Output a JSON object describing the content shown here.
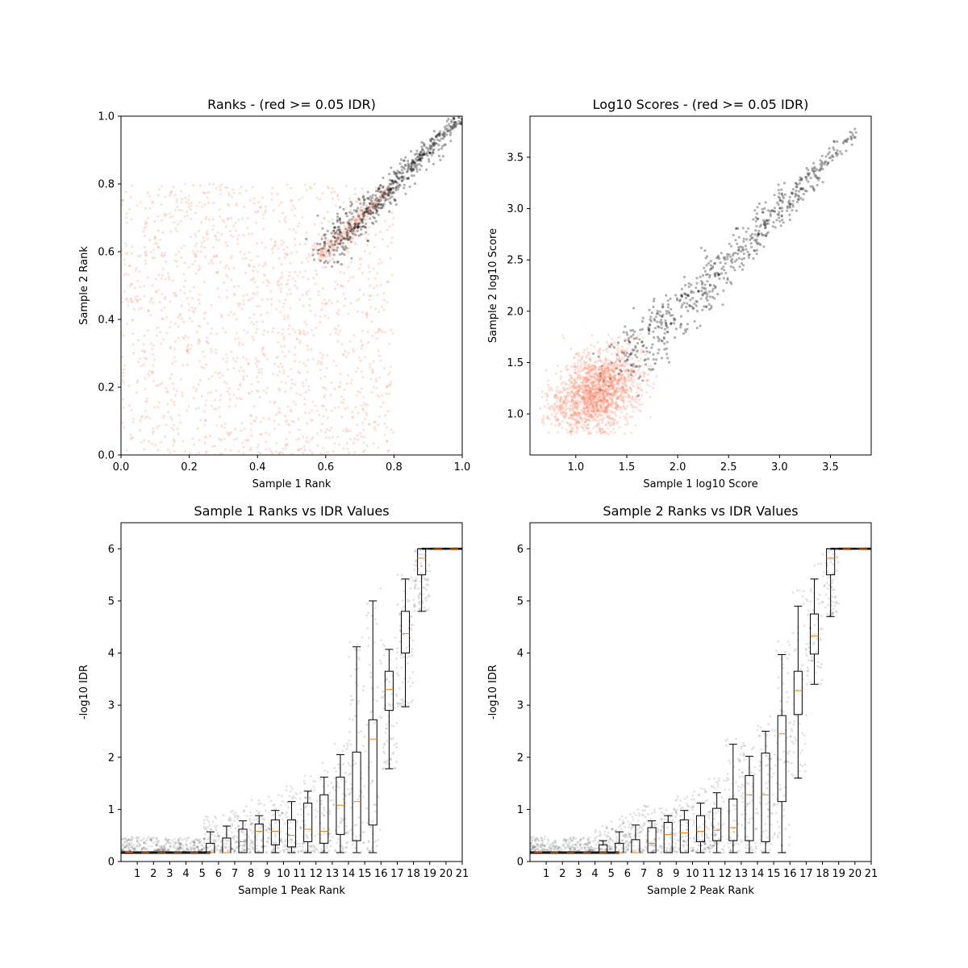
{
  "chart_data": [
    {
      "type": "scatter",
      "title": "Ranks - (red >= 0.05 IDR)",
      "xlabel": "Sample 1 Rank",
      "ylabel": "Sample 2 Rank",
      "xlim": [
        0,
        1
      ],
      "ylim": [
        0,
        1
      ],
      "xticks": [
        0.0,
        0.2,
        0.4,
        0.6,
        0.8,
        1.0
      ],
      "yticks": [
        0.0,
        0.2,
        0.4,
        0.6,
        0.8,
        1.0
      ],
      "colors": {
        "pass": "#000000",
        "fail": "#fa8060"
      },
      "series": [
        {
          "class": "fail",
          "cluster": "uniform",
          "xrange": [
            0,
            0.8
          ],
          "yrange": [
            0,
            0.8
          ],
          "count": 1500
        },
        {
          "class": "fail",
          "cluster": "diagonal",
          "xrange": [
            0.58,
            0.78
          ],
          "yrange": [
            0.58,
            0.78
          ],
          "count": 250
        },
        {
          "class": "pass",
          "cluster": "diagonal",
          "xrange": [
            0.6,
            1.0
          ],
          "yrange": [
            0.58,
            1.0
          ],
          "count": 600
        }
      ]
    },
    {
      "type": "scatter",
      "title": "Log10 Scores - (red >= 0.05 IDR)",
      "xlabel": "Sample 1 log10 Score",
      "ylabel": "Sample 2 log10 Score",
      "xlim": [
        0.55,
        3.9
      ],
      "ylim": [
        0.6,
        3.9
      ],
      "xticks": [
        1.0,
        1.5,
        2.0,
        2.5,
        3.0,
        3.5
      ],
      "yticks": [
        1.0,
        1.5,
        2.0,
        2.5,
        3.0,
        3.5
      ],
      "colors": {
        "pass": "#000000",
        "fail": "#fa8060"
      },
      "series": [
        {
          "class": "fail",
          "cluster": "blob",
          "center": [
            1.2,
            1.2
          ],
          "spread": [
            0.22,
            0.2
          ],
          "xrange": [
            0.65,
            1.8
          ],
          "yrange": [
            0.8,
            1.8
          ],
          "count": 1700
        },
        {
          "class": "pass",
          "cluster": "diagonal",
          "xrange": [
            1.45,
            3.75
          ],
          "yrange": [
            1.35,
            3.75
          ],
          "count": 650
        }
      ]
    },
    {
      "type": "box",
      "title": "Sample 1 Ranks vs IDR Values",
      "xlabel": "Sample 1 Peak Rank",
      "ylabel": "-log10 IDR",
      "xlim": [
        0,
        21
      ],
      "ylim": [
        0,
        6.5
      ],
      "xticks": [
        1,
        2,
        3,
        4,
        5,
        6,
        7,
        8,
        9,
        10,
        11,
        12,
        13,
        14,
        15,
        16,
        17,
        18,
        19,
        20,
        21
      ],
      "yticks": [
        0,
        1,
        2,
        3,
        4,
        5,
        6
      ],
      "boxes": [
        {
          "x": 0.5,
          "q1": 0.18,
          "med": 0.18,
          "q3": 0.18,
          "low": 0.18,
          "high": 0.18
        },
        {
          "x": 1.5,
          "q1": 0.17,
          "med": 0.17,
          "q3": 0.17,
          "low": 0.17,
          "high": 0.17
        },
        {
          "x": 2.5,
          "q1": 0.17,
          "med": 0.17,
          "q3": 0.17,
          "low": 0.17,
          "high": 0.17
        },
        {
          "x": 3.5,
          "q1": 0.17,
          "med": 0.17,
          "q3": 0.17,
          "low": 0.17,
          "high": 0.17
        },
        {
          "x": 4.5,
          "q1": 0.17,
          "med": 0.17,
          "q3": 0.17,
          "low": 0.17,
          "high": 0.17
        },
        {
          "x": 5.5,
          "q1": 0.17,
          "med": 0.17,
          "q3": 0.35,
          "low": 0.17,
          "high": 0.57
        },
        {
          "x": 6.5,
          "q1": 0.17,
          "med": 0.17,
          "q3": 0.45,
          "low": 0.17,
          "high": 0.68
        },
        {
          "x": 7.5,
          "q1": 0.17,
          "med": 0.38,
          "q3": 0.62,
          "low": 0.17,
          "high": 0.78
        },
        {
          "x": 8.5,
          "q1": 0.17,
          "med": 0.58,
          "q3": 0.72,
          "low": 0.17,
          "high": 0.88
        },
        {
          "x": 9.5,
          "q1": 0.32,
          "med": 0.58,
          "q3": 0.8,
          "low": 0.17,
          "high": 0.98
        },
        {
          "x": 10.5,
          "q1": 0.28,
          "med": 0.5,
          "q3": 0.8,
          "low": 0.17,
          "high": 1.15
        },
        {
          "x": 11.5,
          "q1": 0.38,
          "med": 0.62,
          "q3": 1.12,
          "low": 0.17,
          "high": 1.35
        },
        {
          "x": 12.5,
          "q1": 0.35,
          "med": 0.58,
          "q3": 1.28,
          "low": 0.17,
          "high": 1.62
        },
        {
          "x": 13.5,
          "q1": 0.52,
          "med": 1.08,
          "q3": 1.62,
          "low": 0.17,
          "high": 2.05
        },
        {
          "x": 14.5,
          "q1": 0.4,
          "med": 1.15,
          "q3": 2.1,
          "low": 0.17,
          "high": 4.12
        },
        {
          "x": 15.5,
          "q1": 0.7,
          "med": 2.35,
          "q3": 2.72,
          "low": 0.17,
          "high": 5.0
        },
        {
          "x": 16.5,
          "q1": 2.9,
          "med": 3.3,
          "q3": 3.65,
          "low": 1.78,
          "high": 4.07
        },
        {
          "x": 17.5,
          "q1": 4.0,
          "med": 4.37,
          "q3": 4.8,
          "low": 2.97,
          "high": 5.42
        },
        {
          "x": 18.5,
          "q1": 5.5,
          "med": 5.82,
          "q3": 6.0,
          "low": 4.8,
          "high": 6.0
        },
        {
          "x": 19.5,
          "q1": 6.0,
          "med": 6.0,
          "q3": 6.0,
          "low": 6.0,
          "high": 6.0
        },
        {
          "x": 20.5,
          "q1": 6.0,
          "med": 6.0,
          "q3": 6.0,
          "low": 6.0,
          "high": 6.0
        }
      ]
    },
    {
      "type": "box",
      "title": "Sample 2 Ranks vs IDR Values",
      "xlabel": "Sample 2 Peak Rank",
      "ylabel": "-log10 IDR",
      "xlim": [
        0,
        21
      ],
      "ylim": [
        0,
        6.5
      ],
      "xticks": [
        1,
        2,
        3,
        4,
        5,
        6,
        7,
        8,
        9,
        10,
        11,
        12,
        13,
        14,
        15,
        16,
        17,
        18,
        19,
        20,
        21
      ],
      "yticks": [
        0,
        1,
        2,
        3,
        4,
        5,
        6
      ],
      "boxes": [
        {
          "x": 0.5,
          "q1": 0.18,
          "med": 0.18,
          "q3": 0.18,
          "low": 0.18,
          "high": 0.18
        },
        {
          "x": 1.5,
          "q1": 0.17,
          "med": 0.17,
          "q3": 0.17,
          "low": 0.17,
          "high": 0.17
        },
        {
          "x": 2.5,
          "q1": 0.17,
          "med": 0.17,
          "q3": 0.17,
          "low": 0.17,
          "high": 0.17
        },
        {
          "x": 3.5,
          "q1": 0.17,
          "med": 0.17,
          "q3": 0.17,
          "low": 0.17,
          "high": 0.17
        },
        {
          "x": 4.5,
          "q1": 0.17,
          "med": 0.17,
          "q3": 0.32,
          "low": 0.17,
          "high": 0.4
        },
        {
          "x": 5.5,
          "q1": 0.17,
          "med": 0.17,
          "q3": 0.35,
          "low": 0.17,
          "high": 0.57
        },
        {
          "x": 6.5,
          "q1": 0.17,
          "med": 0.17,
          "q3": 0.42,
          "low": 0.17,
          "high": 0.7
        },
        {
          "x": 7.5,
          "q1": 0.17,
          "med": 0.35,
          "q3": 0.65,
          "low": 0.17,
          "high": 0.78
        },
        {
          "x": 8.5,
          "q1": 0.17,
          "med": 0.52,
          "q3": 0.75,
          "low": 0.17,
          "high": 0.88
        },
        {
          "x": 9.5,
          "q1": 0.17,
          "med": 0.55,
          "q3": 0.8,
          "low": 0.17,
          "high": 0.98
        },
        {
          "x": 10.5,
          "q1": 0.38,
          "med": 0.58,
          "q3": 0.88,
          "low": 0.17,
          "high": 1.12
        },
        {
          "x": 11.5,
          "q1": 0.4,
          "med": 0.6,
          "q3": 1.02,
          "low": 0.17,
          "high": 1.32
        },
        {
          "x": 12.5,
          "q1": 0.4,
          "med": 0.65,
          "q3": 1.2,
          "low": 0.17,
          "high": 2.25
        },
        {
          "x": 13.5,
          "q1": 0.4,
          "med": 1.28,
          "q3": 1.65,
          "low": 0.17,
          "high": 2.02
        },
        {
          "x": 14.5,
          "q1": 0.38,
          "med": 1.28,
          "q3": 2.08,
          "low": 0.17,
          "high": 2.5
        },
        {
          "x": 15.5,
          "q1": 1.15,
          "med": 2.45,
          "q3": 2.8,
          "low": 0.17,
          "high": 3.97
        },
        {
          "x": 16.5,
          "q1": 2.82,
          "med": 3.28,
          "q3": 3.65,
          "low": 1.6,
          "high": 4.9
        },
        {
          "x": 17.5,
          "q1": 3.98,
          "med": 4.33,
          "q3": 4.75,
          "low": 3.4,
          "high": 5.42
        },
        {
          "x": 18.5,
          "q1": 5.5,
          "med": 5.82,
          "q3": 6.0,
          "low": 4.7,
          "high": 6.0
        },
        {
          "x": 19.5,
          "q1": 6.0,
          "med": 6.0,
          "q3": 6.0,
          "low": 6.0,
          "high": 6.0
        },
        {
          "x": 20.5,
          "q1": 6.0,
          "med": 6.0,
          "q3": 6.0,
          "low": 6.0,
          "high": 6.0
        }
      ]
    }
  ]
}
